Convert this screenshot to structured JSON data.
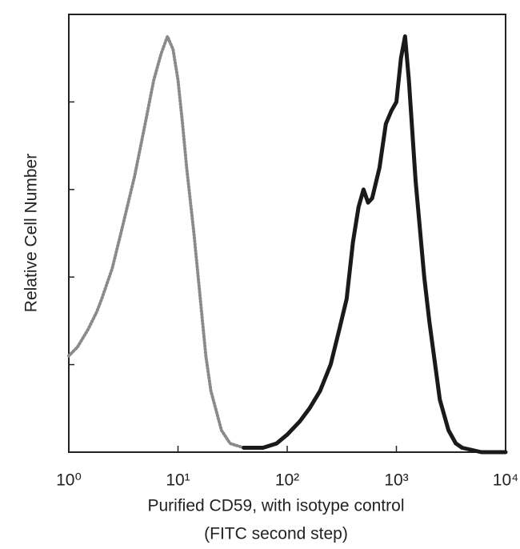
{
  "chart_data": {
    "type": "line",
    "xlabel": [
      "Purified CD59, with isotype control",
      "(FITC second step)"
    ],
    "ylabel": "Relative Cell Number",
    "xscale": "log",
    "xlim": [
      1,
      10000
    ],
    "xticks": [
      {
        "value": 1,
        "label": "10⁰"
      },
      {
        "value": 10,
        "label": "10¹"
      },
      {
        "value": 100,
        "label": "10²"
      },
      {
        "value": 1000,
        "label": "10³"
      },
      {
        "value": 10000,
        "label": "10⁴"
      }
    ],
    "ylim": [
      0,
      100
    ],
    "yticks": [
      0,
      20,
      40,
      60,
      80,
      100
    ],
    "ytick_labels": false,
    "series": [
      {
        "color": "#8a8a8a",
        "style": "dotted",
        "x": [
          1,
          1.2,
          1.5,
          1.8,
          2,
          2.5,
          3,
          3.5,
          4,
          5,
          6,
          7,
          8,
          9,
          10,
          11,
          12,
          14,
          16,
          18,
          20,
          25,
          30,
          40,
          60
        ],
        "values": [
          22,
          24,
          28,
          32,
          35,
          42,
          50,
          57,
          63,
          75,
          85,
          91,
          95,
          92,
          85,
          75,
          65,
          50,
          35,
          22,
          14,
          5,
          2,
          1,
          1
        ]
      },
      {
        "color": "#1a1a1a",
        "style": "solid",
        "x": [
          40,
          60,
          80,
          100,
          130,
          160,
          200,
          250,
          300,
          350,
          400,
          450,
          500,
          550,
          600,
          700,
          800,
          900,
          1000,
          1100,
          1200,
          1300,
          1500,
          1800,
          2000,
          2500,
          3000,
          3500,
          4000,
          6000,
          10000
        ],
        "values": [
          1,
          1,
          2,
          4,
          7,
          10,
          14,
          20,
          28,
          35,
          48,
          56,
          60,
          57,
          58,
          65,
          75,
          78,
          80,
          90,
          95,
          85,
          62,
          40,
          30,
          12,
          5,
          2,
          1,
          0,
          0
        ]
      }
    ]
  }
}
